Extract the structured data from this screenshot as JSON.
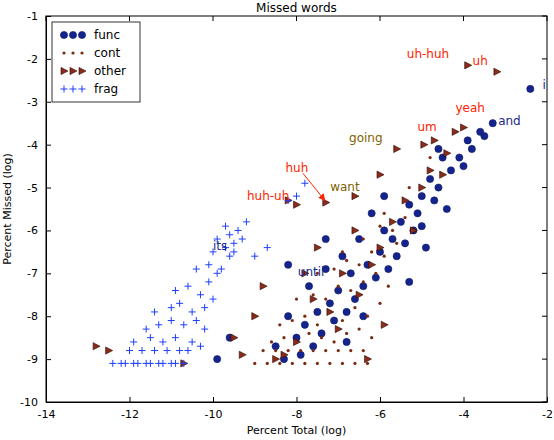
{
  "chart_data": {
    "type": "scatter",
    "title": "Missed words",
    "x_label": "Percent Total (log)",
    "y_label": "Percent Missed (log)",
    "xlim": [
      -14,
      -2
    ],
    "ylim": [
      -10,
      -1
    ],
    "xticks": [
      -14,
      -12,
      -10,
      -8,
      -6,
      -4,
      -2
    ],
    "yticks": [
      -10,
      -9,
      -8,
      -7,
      -6,
      -5,
      -4,
      -3,
      -2,
      -1
    ],
    "grid": false,
    "legend": "upper left",
    "series": [
      {
        "name": "func",
        "color": "#14248c",
        "marker": "circle",
        "x": [
          -2.4,
          -3.3,
          -3.5,
          -3.6,
          -3.8,
          -3.9,
          -4.1,
          -4.3,
          -4.0,
          -4.5,
          -4.6,
          -4.8,
          -4.7,
          -5.0,
          -5.1,
          -5.3,
          -5.2,
          -5.5,
          -5.4,
          -5.7,
          -5.6,
          -5.9,
          -5.8,
          -6.0,
          -6.1,
          -6.2,
          -6.3,
          -6.4,
          -6.5,
          -6.6,
          -6.7,
          -6.8,
          -6.9,
          -7.0,
          -7.1,
          -7.2,
          -7.3,
          -7.4,
          -7.5,
          -7.6,
          -7.7,
          -7.8,
          -7.9,
          -8.0,
          -8.2,
          -8.3,
          -8.5,
          -9.6,
          -9.9,
          -5.0,
          -4.4,
          -4.9,
          -5.3,
          -6.4,
          -7.3,
          -4.6,
          -5.9,
          -6.8,
          -8.2
        ],
        "values": [
          -2.7,
          -3.5,
          -3.8,
          -3.7,
          -4.1,
          -3.9,
          -4.3,
          -4.6,
          -4.5,
          -4.3,
          -5.0,
          -4.8,
          -5.3,
          -5.2,
          -5.6,
          -5.4,
          -6.0,
          -5.8,
          -6.3,
          -6.2,
          -6.6,
          -6.0,
          -6.9,
          -6.5,
          -7.1,
          -5.6,
          -6.8,
          -7.3,
          -6.2,
          -7.6,
          -7.0,
          -7.9,
          -6.6,
          -7.4,
          -8.1,
          -7.7,
          -6.9,
          -8.4,
          -7.9,
          -8.7,
          -7.3,
          -8.2,
          -8.9,
          -8.5,
          -8.0,
          -9.0,
          -8.7,
          -8.5,
          -9.0,
          -5.9,
          -5.5,
          -6.4,
          -7.2,
          -8.0,
          -6.2,
          -4.1,
          -5.2,
          -8.6,
          -6.8
        ]
      },
      {
        "name": "cont",
        "color": "#7a2a10",
        "marker": "point",
        "x": [
          -9.0,
          -8.7,
          -8.4,
          -8.1,
          -7.8,
          -7.5,
          -7.2,
          -6.9,
          -6.6,
          -6.3,
          -8.8,
          -8.5,
          -8.2,
          -7.9,
          -7.6,
          -7.3,
          -7.0,
          -6.7,
          -6.4,
          -8.6,
          -8.3,
          -8.0,
          -7.7,
          -7.4,
          -7.1,
          -6.8,
          -6.5,
          -6.2,
          -8.4,
          -8.1,
          -7.8,
          -7.5,
          -7.2,
          -6.9,
          -6.6,
          -6.3,
          -6.0,
          -8.0,
          -7.6,
          -7.3,
          -7.0,
          -6.7,
          -6.4,
          -6.1,
          -5.8,
          -7.5,
          -7.1,
          -6.8,
          -6.5,
          -6.2,
          -5.9,
          -5.6,
          -6.9,
          -6.4,
          -6.0,
          -5.7,
          -5.4,
          -5.9,
          -5.3,
          -4.8
        ],
        "values": [
          -9.1,
          -9.1,
          -9.1,
          -9.1,
          -9.1,
          -9.1,
          -9.1,
          -9.1,
          -9.1,
          -9.1,
          -8.8,
          -8.8,
          -8.8,
          -8.8,
          -8.8,
          -8.8,
          -8.8,
          -8.8,
          -8.8,
          -8.6,
          -8.5,
          -8.6,
          -8.4,
          -8.5,
          -8.6,
          -8.4,
          -8.3,
          -8.5,
          -8.2,
          -8.1,
          -8.0,
          -8.2,
          -7.9,
          -8.1,
          -7.8,
          -8.0,
          -7.7,
          -7.6,
          -7.5,
          -7.6,
          -7.3,
          -7.4,
          -7.2,
          -7.0,
          -7.3,
          -7.0,
          -6.9,
          -6.7,
          -6.8,
          -6.5,
          -6.6,
          -6.3,
          -6.5,
          -6.2,
          -5.9,
          -6.0,
          -5.7,
          -5.6,
          -5.0,
          -4.3
        ]
      },
      {
        "name": "other",
        "color": "#8b2b1b",
        "marker": "triangle-right",
        "x": [
          -3.9,
          -3.2,
          -4.2,
          -4.95,
          -5.6,
          -6.6,
          -7.3,
          -8.2,
          -8.0,
          -12.8,
          -12.5,
          -10.7,
          -9.5,
          -9.0,
          -9.3,
          -8.3,
          -8.0,
          -7.6,
          -7.2,
          -7.0,
          -6.9,
          -6.5,
          -6.2,
          -6.6,
          -6.0,
          -5.7,
          -5.4,
          -5.2,
          -5.0,
          -4.8,
          -4.5,
          -4.4,
          -4.7,
          -7.5,
          -7.8,
          -8.8,
          -8.5,
          -6.3,
          -5.9,
          -4.0,
          -6.0
        ],
        "values": [
          -2.15,
          -2.3,
          -3.7,
          -4.0,
          -4.1,
          -5.2,
          -5.35,
          -5.3,
          -5.4,
          -8.7,
          -8.8,
          -9.1,
          -8.5,
          -8.0,
          -8.9,
          -8.9,
          -8.6,
          -7.6,
          -7.9,
          -8.3,
          -7.0,
          -7.5,
          -6.8,
          -6.0,
          -6.4,
          -5.8,
          -5.3,
          -6.0,
          -5.0,
          -4.6,
          -4.7,
          -4.2,
          -3.9,
          -6.4,
          -7.0,
          -7.3,
          -9.0,
          -9.0,
          -8.2,
          -3.6,
          -4.7
        ]
      },
      {
        "name": "frag",
        "color": "#1f3fff",
        "marker": "plus",
        "x": [
          -12.4,
          -12.2,
          -12.1,
          -11.9,
          -11.8,
          -11.6,
          -11.5,
          -11.3,
          -11.2,
          -11.0,
          -10.9,
          -10.7,
          -12.0,
          -11.7,
          -11.4,
          -11.1,
          -10.8,
          -10.6,
          -11.9,
          -11.5,
          -11.2,
          -10.9,
          -10.5,
          -10.3,
          -11.6,
          -11.3,
          -11.0,
          -10.7,
          -10.4,
          -10.2,
          -11.4,
          -11.0,
          -10.8,
          -10.5,
          -10.2,
          -10.0,
          -10.9,
          -10.6,
          -10.3,
          -10.1,
          -9.9,
          -10.4,
          -10.1,
          -9.8,
          -9.6,
          -10.0,
          -9.7,
          -9.5,
          -9.9,
          -9.6,
          -9.3,
          -9.7,
          -9.4,
          -9.2,
          -9.5,
          -9.0,
          -8.7,
          -8.2,
          -8.0,
          -7.8
        ],
        "values": [
          -9.1,
          -9.1,
          -9.1,
          -9.1,
          -9.1,
          -9.1,
          -9.1,
          -9.1,
          -9.1,
          -9.1,
          -9.1,
          -9.1,
          -8.8,
          -8.8,
          -8.8,
          -8.8,
          -8.8,
          -8.8,
          -8.6,
          -8.5,
          -8.6,
          -8.5,
          -8.6,
          -8.7,
          -8.3,
          -8.2,
          -8.1,
          -8.2,
          -8.1,
          -8.3,
          -7.9,
          -7.8,
          -7.7,
          -7.9,
          -7.8,
          -7.6,
          -7.4,
          -7.3,
          -7.5,
          -7.2,
          -7.0,
          -6.9,
          -6.8,
          -6.9,
          -6.6,
          -6.5,
          -6.4,
          -6.3,
          -6.2,
          -6.1,
          -6.2,
          -5.9,
          -6.0,
          -5.8,
          -6.5,
          -6.6,
          -6.4,
          -5.3,
          -5.2,
          -4.9
        ]
      }
    ],
    "annotations": [
      {
        "text": "uh-huh",
        "x": -4.85,
        "y": -1.9,
        "color": "#ff2200"
      },
      {
        "text": "uh",
        "x": -3.6,
        "y": -2.05,
        "color": "#ff2200"
      },
      {
        "text": "i",
        "x": -2.07,
        "y": -2.62,
        "color": "#1a2a8c"
      },
      {
        "text": "and",
        "x": -2.9,
        "y": -3.45,
        "color": "#1a2a8c"
      },
      {
        "text": "yeah",
        "x": -3.84,
        "y": -3.16,
        "color": "#ff2200"
      },
      {
        "text": "um",
        "x": -4.87,
        "y": -3.6,
        "color": "#ff2200"
      },
      {
        "text": "going",
        "x": -6.34,
        "y": -3.85,
        "color": "#7f5f00"
      },
      {
        "text": "want",
        "x": -6.84,
        "y": -4.99,
        "color": "#7f5f00"
      },
      {
        "text": "huh",
        "x": -7.99,
        "y": -4.55,
        "color": "#ff2200",
        "arrow_to": [
          -7.32,
          -5.3
        ]
      },
      {
        "text": "huh-uh",
        "x": -8.68,
        "y": -5.22,
        "color": "#ff2200"
      },
      {
        "text": "its",
        "x": -9.83,
        "y": -6.38,
        "color": "#1a2a8c"
      },
      {
        "text": "until",
        "x": -7.65,
        "y": -6.99,
        "color": "#1a2a8c"
      }
    ]
  }
}
